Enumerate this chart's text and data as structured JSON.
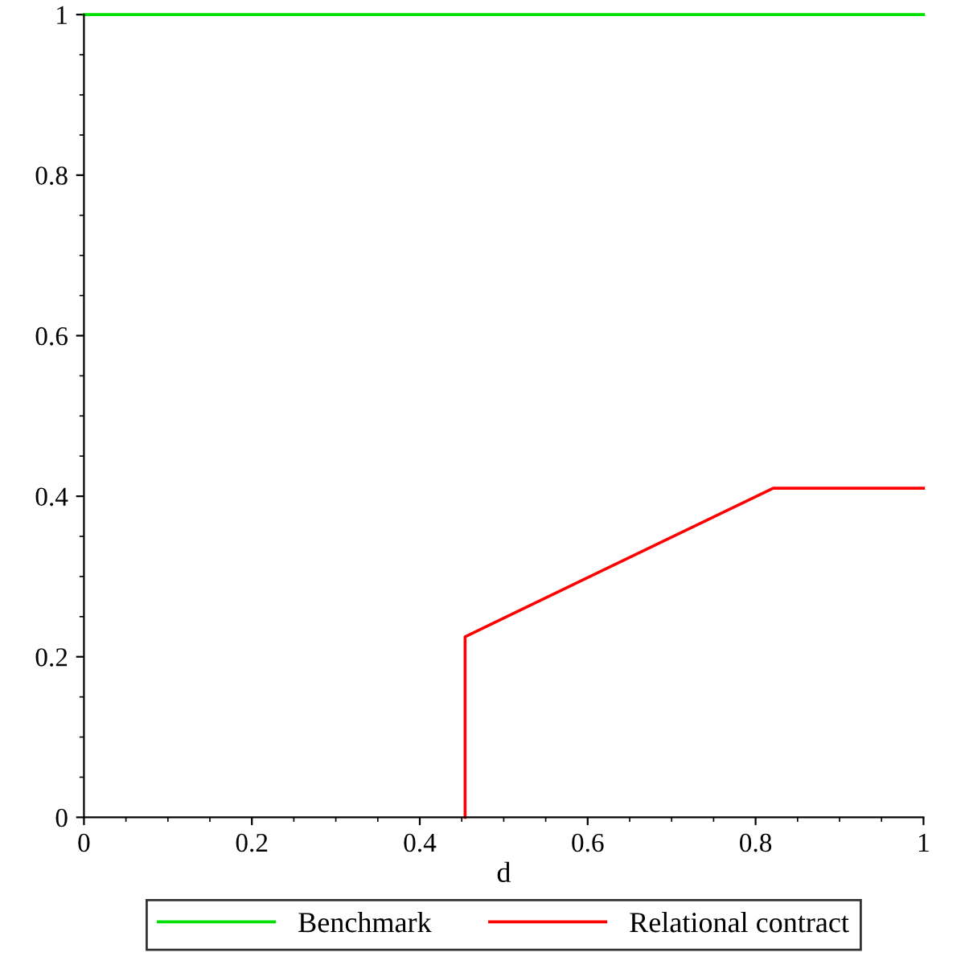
{
  "chart_data": {
    "type": "line",
    "xlabel": "d",
    "xlim": [
      0,
      1
    ],
    "ylim": [
      0,
      1
    ],
    "xticks": [
      0,
      0.2,
      0.4,
      0.6,
      0.8,
      1
    ],
    "yticks": [
      0,
      0.2,
      0.4,
      0.6,
      0.8,
      1
    ],
    "grid": false,
    "legend": "bottom",
    "marker": "none",
    "line_style": "solid",
    "series": [
      {
        "name": "Benchmark",
        "color": "#00e000",
        "x": [
          0,
          1
        ],
        "values": [
          1,
          1
        ]
      },
      {
        "name": "Relational contract",
        "color": "#ff0000",
        "x": [
          0.454,
          0.454,
          0.821,
          1
        ],
        "values": [
          0,
          0.225,
          0.41,
          0.41
        ]
      }
    ]
  }
}
